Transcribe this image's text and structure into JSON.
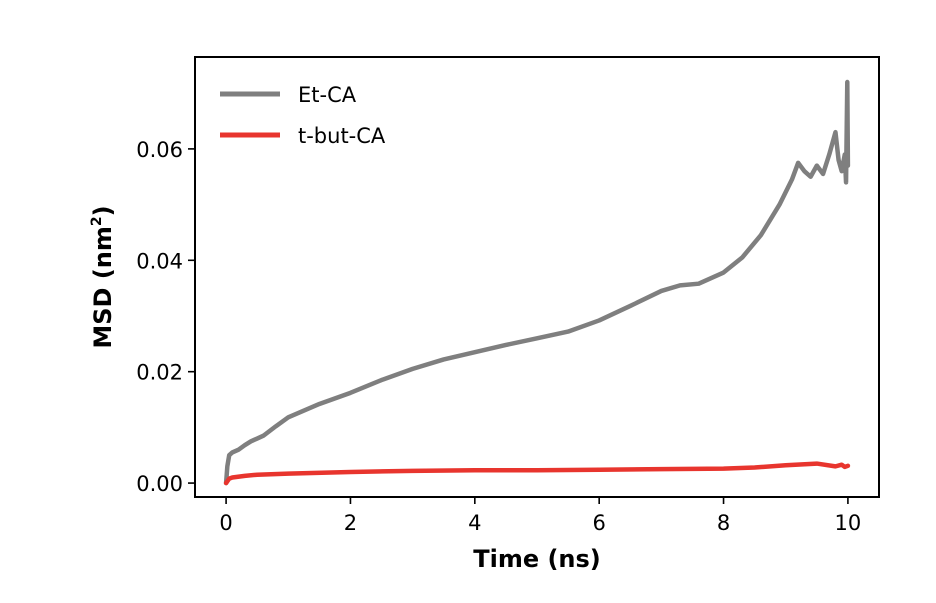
{
  "chart_data": {
    "type": "line",
    "xlabel": "Time (ns)",
    "ylabel_main": "MSD (nm",
    "ylabel_sup": "2",
    "ylabel_close": ")",
    "xlim": [
      -0.5,
      10.5
    ],
    "ylim": [
      -0.0025,
      0.0765
    ],
    "xticks": [
      0,
      2,
      4,
      6,
      8,
      10
    ],
    "xtick_labels": [
      "0",
      "2",
      "4",
      "6",
      "8",
      "10"
    ],
    "yticks": [
      0.0,
      0.02,
      0.04,
      0.06
    ],
    "ytick_labels": [
      "0.00",
      "0.02",
      "0.04",
      "0.06"
    ],
    "grid": false,
    "legend_position": "top-left",
    "series": [
      {
        "name": "Et-CA",
        "color": "#7f7f7f",
        "x": [
          0,
          0.02,
          0.05,
          0.1,
          0.2,
          0.3,
          0.4,
          0.5,
          0.6,
          0.8,
          1.0,
          1.5,
          2.0,
          2.5,
          3.0,
          3.5,
          4.0,
          4.5,
          5.0,
          5.5,
          6.0,
          6.5,
          7.0,
          7.3,
          7.6,
          8.0,
          8.3,
          8.6,
          8.9,
          9.1,
          9.2,
          9.3,
          9.4,
          9.5,
          9.6,
          9.7,
          9.75,
          9.8,
          9.85,
          9.9,
          9.95,
          9.97,
          9.99,
          10.0
        ],
        "y": [
          0.0,
          0.003,
          0.005,
          0.0055,
          0.006,
          0.0068,
          0.0075,
          0.008,
          0.0085,
          0.0102,
          0.0118,
          0.0142,
          0.0162,
          0.0185,
          0.0205,
          0.0222,
          0.0235,
          0.0248,
          0.026,
          0.0272,
          0.0292,
          0.0318,
          0.0345,
          0.0355,
          0.0358,
          0.0378,
          0.0405,
          0.0445,
          0.05,
          0.0545,
          0.0575,
          0.056,
          0.055,
          0.057,
          0.0555,
          0.059,
          0.061,
          0.063,
          0.058,
          0.056,
          0.059,
          0.054,
          0.072,
          0.057
        ]
      },
      {
        "name": "t-but-CA",
        "color": "#e8352e",
        "x": [
          0,
          0.05,
          0.1,
          0.3,
          0.5,
          1.0,
          2.0,
          3.0,
          4.0,
          5.0,
          6.0,
          7.0,
          8.0,
          8.5,
          9.0,
          9.5,
          9.8,
          9.9,
          9.95,
          10.0
        ],
        "y": [
          0.0,
          0.0008,
          0.001,
          0.0013,
          0.0015,
          0.0017,
          0.002,
          0.0022,
          0.0023,
          0.0023,
          0.0024,
          0.0025,
          0.0026,
          0.0028,
          0.0032,
          0.0035,
          0.003,
          0.0033,
          0.0029,
          0.0031
        ]
      }
    ]
  }
}
